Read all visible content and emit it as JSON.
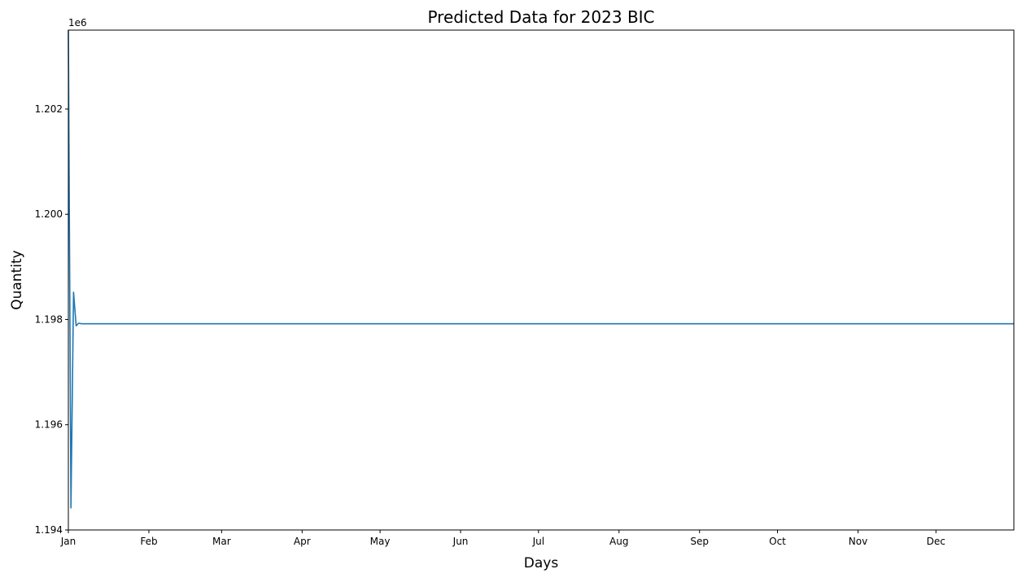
{
  "chart_data": {
    "type": "line",
    "title": "Predicted Data for 2023 BIC",
    "xlabel": "Days",
    "ylabel": "Quantity",
    "y_offset_label": "1e6",
    "x_tick_labels": [
      "Jan",
      "Feb",
      "Mar",
      "Apr",
      "May",
      "Jun",
      "Jul",
      "Aug",
      "Sep",
      "Oct",
      "Nov",
      "Dec"
    ],
    "x_range": [
      "2023-01-01",
      "2023-12-31"
    ],
    "y_ticks": [
      1.194,
      1.196,
      1.198,
      1.2,
      1.202
    ],
    "y_tick_labels": [
      "1.194",
      "1.196",
      "1.198",
      "1.200",
      "1.202"
    ],
    "ylim": [
      1.194,
      1.2035
    ],
    "y_unit_multiplier": 1000000,
    "grid": false,
    "legend": "none",
    "series": [
      {
        "color": "#1f77b4",
        "points": [
          {
            "x": "2023-01-01",
            "y": 1.2035
          },
          {
            "x": "2023-01-02",
            "y": 1.19442
          },
          {
            "x": "2023-01-03",
            "y": 1.19852
          },
          {
            "x": "2023-01-04",
            "y": 1.19788
          },
          {
            "x": "2023-01-05",
            "y": 1.19793
          },
          {
            "x": "2023-01-06",
            "y": 1.19792
          },
          {
            "x": "2023-12-31",
            "y": 1.19792
          }
        ]
      }
    ]
  }
}
